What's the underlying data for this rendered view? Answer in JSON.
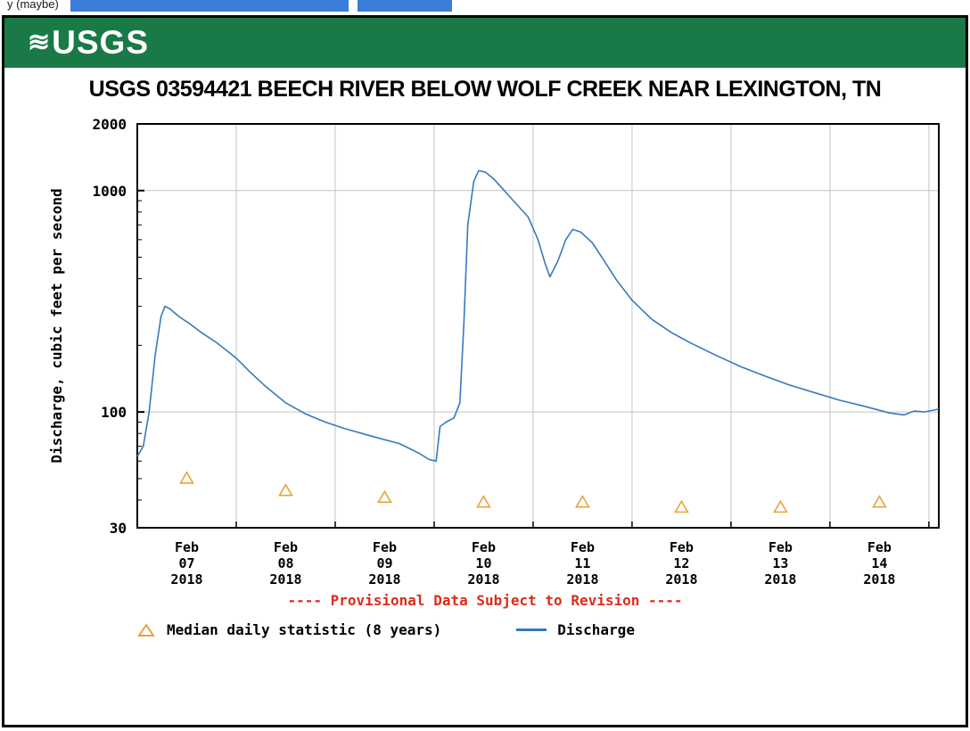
{
  "top_clipped": {
    "text": "y (maybe)"
  },
  "header": {
    "logo_text": "USGS",
    "waves_glyph": "≋"
  },
  "title": "USGS 03594421 BEECH RIVER BELOW WOLF CREEK NEAR LEXINGTON, TN",
  "provisional_note": "---- Provisional Data Subject to Revision ----",
  "legend": {
    "median_label": "Median daily statistic (8 years)",
    "discharge_label": "Discharge"
  },
  "colors": {
    "banner_green": "#1a7a47",
    "discharge_blue": "#3779be",
    "median_orange": "#e8a33b",
    "provisional_red": "#dd2b1c",
    "grid_gray": "#c4c4c4",
    "highlight_blue": "#3b7dd8"
  },
  "chart_data": {
    "type": "line",
    "title": "USGS 03594421 BEECH RIVER BELOW WOLF CREEK NEAR LEXINGTON, TN",
    "xlabel": "",
    "ylabel": "Discharge, cubic feet per second",
    "yscale": "log",
    "ylim": [
      30,
      2000
    ],
    "yticks": [
      {
        "value": 2000,
        "label": "2000"
      },
      {
        "value": 1000,
        "label": "1000"
      },
      {
        "value": 100,
        "label": "100"
      },
      {
        "value": 30,
        "label": "30"
      }
    ],
    "x_unit": "days since 2018-02-07 00:00",
    "xlim": [
      0,
      8.1
    ],
    "day_gridlines": [
      0,
      1,
      2,
      3,
      4,
      5,
      6,
      7,
      8
    ],
    "grid": true,
    "legend_position": "bottom",
    "xticks": [
      {
        "pos": 0.5,
        "label": "Feb 07 2018"
      },
      {
        "pos": 1.5,
        "label": "Feb 08 2018"
      },
      {
        "pos": 2.5,
        "label": "Feb 09 2018"
      },
      {
        "pos": 3.5,
        "label": "Feb 10 2018"
      },
      {
        "pos": 4.5,
        "label": "Feb 11 2018"
      },
      {
        "pos": 5.5,
        "label": "Feb 12 2018"
      },
      {
        "pos": 6.5,
        "label": "Feb 13 2018"
      },
      {
        "pos": 7.5,
        "label": "Feb 14 2018"
      }
    ],
    "series": [
      {
        "name": "Discharge",
        "type": "line",
        "color": "#3779be",
        "x": [
          0.0,
          0.06,
          0.12,
          0.18,
          0.24,
          0.28,
          0.33,
          0.42,
          0.52,
          0.65,
          0.8,
          1.0,
          1.15,
          1.3,
          1.5,
          1.7,
          1.9,
          2.1,
          2.4,
          2.65,
          2.85,
          2.95,
          3.02,
          3.06,
          3.12,
          3.2,
          3.26,
          3.3,
          3.34,
          3.4,
          3.45,
          3.52,
          3.6,
          3.7,
          3.8,
          3.95,
          4.05,
          4.12,
          4.17,
          4.25,
          4.33,
          4.4,
          4.48,
          4.6,
          4.72,
          4.85,
          5.0,
          5.2,
          5.4,
          5.6,
          5.85,
          6.1,
          6.35,
          6.6,
          6.85,
          7.1,
          7.35,
          7.6,
          7.75,
          7.85,
          7.95,
          8.05,
          8.1
        ],
        "y": [
          63,
          70,
          100,
          180,
          270,
          300,
          292,
          270,
          252,
          228,
          206,
          175,
          150,
          130,
          110,
          98,
          90,
          84,
          77,
          72,
          65,
          61,
          60,
          86,
          90,
          94,
          110,
          250,
          700,
          1100,
          1230,
          1210,
          1130,
          1010,
          900,
          760,
          600,
          470,
          408,
          480,
          600,
          668,
          650,
          580,
          480,
          390,
          320,
          262,
          228,
          204,
          180,
          160,
          145,
          132,
          122,
          113,
          106,
          99,
          97,
          101,
          100,
          102,
          103
        ]
      },
      {
        "name": "Median daily statistic (8 years)",
        "type": "scatter",
        "marker": "open-triangle",
        "color": "#e8a33b",
        "x": [
          0.5,
          1.5,
          2.5,
          3.5,
          4.5,
          5.5,
          6.5,
          7.5
        ],
        "y": [
          50,
          44,
          41,
          39,
          39,
          37,
          37,
          39
        ]
      }
    ]
  }
}
